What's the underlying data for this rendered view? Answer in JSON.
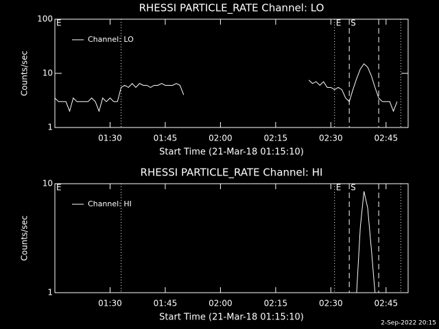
{
  "chart_data": [
    {
      "type": "line",
      "title": "RHESSI PARTICLE_RATE Channel: LO",
      "xlabel": "Start Time (21-Mar-18 01:15:10)",
      "ylabel": "Counts/sec",
      "x": [
        "01:15",
        "01:16",
        "01:17",
        "01:18",
        "01:19",
        "01:20",
        "01:21",
        "01:22",
        "01:23",
        "01:24",
        "01:25",
        "01:26",
        "01:27",
        "01:28",
        "01:29",
        "01:30",
        "01:31",
        "01:32",
        "01:33",
        "01:34",
        "01:35",
        "01:36",
        "01:37",
        "01:38",
        "01:39",
        "01:40",
        "01:41",
        "01:42",
        "01:43",
        "01:44",
        "01:45",
        "01:46",
        "01:47",
        "01:48",
        "01:49",
        "01:50",
        "01:51",
        "02:24",
        "02:25",
        "02:26",
        "02:27",
        "02:28",
        "02:29",
        "02:30",
        "02:31",
        "02:32",
        "02:33",
        "02:34",
        "02:35",
        "02:36",
        "02:37",
        "02:38",
        "02:39",
        "02:40",
        "02:41",
        "02:42",
        "02:43",
        "02:44",
        "02:45",
        "02:46",
        "02:47",
        "02:48"
      ],
      "series": [
        {
          "name": "Channel: LO",
          "color": "#ffffff",
          "values": [
            3.5,
            3,
            3,
            3,
            2,
            3.5,
            3,
            3,
            3,
            3,
            3.5,
            3,
            2,
            3.5,
            3,
            3.5,
            3,
            3,
            5.5,
            6,
            5.5,
            6.5,
            5.5,
            6.5,
            6,
            6,
            5.5,
            6,
            6,
            6.5,
            6,
            6,
            6,
            6.5,
            6,
            4,
            null,
            7.5,
            6.5,
            7,
            6,
            7,
            5.5,
            5.5,
            5,
            5.5,
            5,
            3.5,
            3,
            5,
            8,
            12,
            15,
            13,
            9,
            5.5,
            3.5,
            3,
            3,
            3,
            2,
            3
          ]
        }
      ],
      "xlim": [
        "01:15",
        "02:51"
      ],
      "xticks": [
        "01:30",
        "01:45",
        "02:00",
        "02:15",
        "02:30",
        "02:45"
      ],
      "ylim": [
        1,
        100
      ],
      "yticks": [
        1,
        10,
        100
      ],
      "log_scale": "y",
      "markers": [
        {
          "x": "01:33",
          "style": "dotted"
        },
        {
          "x": "02:31",
          "style": "dotted"
        },
        {
          "x": "02:35",
          "style": "dashed"
        },
        {
          "x": "02:43",
          "style": "dashed"
        },
        {
          "x": "02:49",
          "style": "dotted"
        }
      ],
      "marker_labels": [
        {
          "x": "01:15",
          "text": "E"
        },
        {
          "x": "02:31",
          "text": "E"
        },
        {
          "x": "02:35",
          "text": "S"
        }
      ]
    },
    {
      "type": "line",
      "title": "RHESSI PARTICLE_RATE Channel: HI",
      "xlabel": "Start Time (21-Mar-18 01:15:10)",
      "ylabel": "Counts/sec",
      "x": [
        "02:37",
        "02:38",
        "02:39",
        "02:40",
        "02:41",
        "02:42"
      ],
      "series": [
        {
          "name": "Channel: HI",
          "color": "#ffffff",
          "values": [
            1,
            4,
            8.5,
            6,
            2.5,
            1
          ]
        }
      ],
      "xlim": [
        "01:15",
        "02:51"
      ],
      "xticks": [
        "01:30",
        "01:45",
        "02:00",
        "02:15",
        "02:30",
        "02:45"
      ],
      "ylim": [
        1,
        10
      ],
      "yticks": [
        1,
        10
      ],
      "log_scale": "y",
      "markers": [
        {
          "x": "01:33",
          "style": "dotted"
        },
        {
          "x": "02:31",
          "style": "dotted"
        },
        {
          "x": "02:35",
          "style": "dashed"
        },
        {
          "x": "02:43",
          "style": "dashed"
        },
        {
          "x": "02:49",
          "style": "dotted"
        }
      ],
      "marker_labels": [
        {
          "x": "01:15",
          "text": "E"
        },
        {
          "x": "02:31",
          "text": "E"
        },
        {
          "x": "02:35",
          "text": "S"
        }
      ]
    }
  ],
  "footer": "2-Sep-2022 20:15"
}
